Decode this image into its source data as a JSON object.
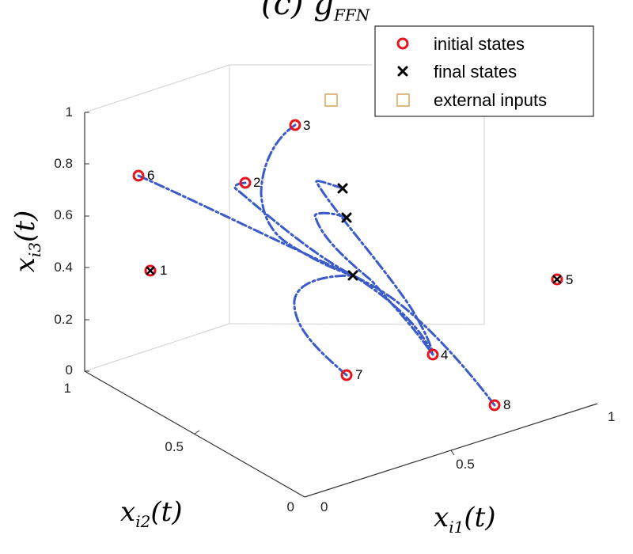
{
  "chart_data": {
    "type": "line-3d",
    "title": {
      "prefix": "(c) ",
      "main": "g",
      "subscript": "FFN"
    },
    "axes": {
      "x": {
        "label_main": "x",
        "label_sub": "i1",
        "label_suffix": "(t)",
        "ticks": [
          "0",
          "0.5",
          "1"
        ]
      },
      "y": {
        "label_main": "x",
        "label_sub": "i2",
        "label_suffix": "(t)",
        "ticks": [
          "0",
          "0.5",
          "1"
        ]
      },
      "z": {
        "label_main": "x",
        "label_sub": "i3",
        "label_suffix": "(t)",
        "ticks": [
          "0",
          "0.2",
          "0.4",
          "0.6",
          "0.8",
          "1"
        ]
      }
    },
    "legend": {
      "placement": "top-right",
      "entries": [
        {
          "label": "initial states",
          "marker": "red-circle"
        },
        {
          "label": "final states",
          "marker": "black-x"
        },
        {
          "label": "external inputs",
          "marker": "orange-square"
        }
      ]
    },
    "points": [
      {
        "label": "1"
      },
      {
        "label": "2"
      },
      {
        "label": "3"
      },
      {
        "label": "4"
      },
      {
        "label": "5"
      },
      {
        "label": "6"
      },
      {
        "label": "7"
      },
      {
        "label": "8"
      }
    ],
    "colors": {
      "trajectory": "#3b5bc9",
      "initial": "#e8141e",
      "final": "#000000",
      "external": "#d9a15a"
    }
  }
}
